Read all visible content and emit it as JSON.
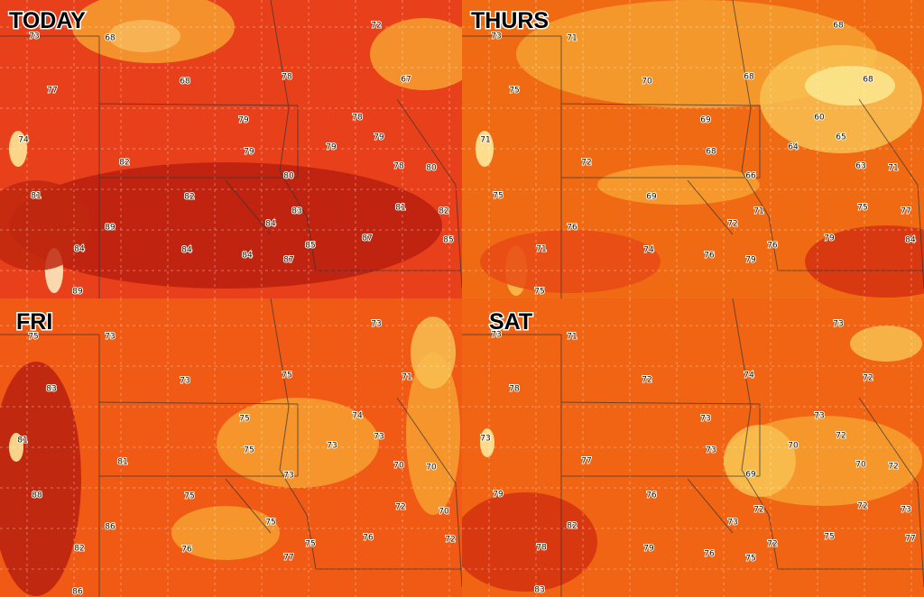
{
  "panels": [
    {
      "title": "TODAY",
      "labels": [
        73,
        68,
        72,
        68,
        78,
        67,
        77,
        79,
        78,
        74,
        79,
        79,
        79,
        82,
        78,
        80,
        80,
        81,
        82,
        83,
        81,
        82,
        84,
        89,
        87,
        85,
        84,
        84,
        85,
        84,
        87,
        89
      ]
    },
    {
      "title": "THURS",
      "labels": [
        73,
        71,
        68,
        70,
        68,
        68,
        75,
        69,
        60,
        71,
        68,
        64,
        65,
        72,
        63,
        71,
        66,
        75,
        69,
        71,
        75,
        77,
        72,
        76,
        79,
        84,
        71,
        74,
        76,
        76,
        79,
        75
      ]
    },
    {
      "title": "FRI",
      "labels": [
        75,
        73,
        73,
        73,
        75,
        71,
        83,
        75,
        74,
        81,
        75,
        73,
        73,
        81,
        70,
        70,
        73,
        88,
        75,
        72,
        70,
        75,
        86,
        76,
        72,
        82,
        76,
        75,
        77,
        86
      ]
    },
    {
      "title": "SAT",
      "labels": [
        73,
        71,
        73,
        72,
        74,
        72,
        78,
        73,
        73,
        73,
        73,
        70,
        72,
        77,
        70,
        72,
        69,
        79,
        76,
        72,
        72,
        73,
        73,
        82,
        75,
        77,
        78,
        79,
        72,
        76,
        75,
        83
      ]
    }
  ]
}
